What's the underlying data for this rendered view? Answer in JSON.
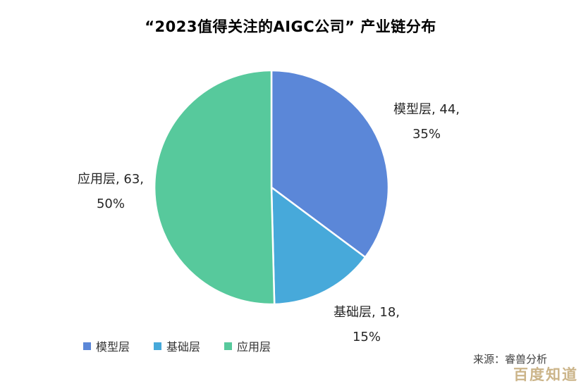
{
  "chart_data": {
    "type": "pie",
    "title": "“2023值得关注的AIGC公司” 产业链分布",
    "categories": [
      "模型层",
      "基础层",
      "应用层"
    ],
    "values": [
      44,
      18,
      63
    ],
    "percentages": [
      "35%",
      "15%",
      "50%"
    ],
    "colors": [
      "#5b87d8",
      "#47a9da",
      "#57c99c"
    ],
    "start_angle_deg": 0,
    "direction": "clockwise",
    "slice_border_color": "#ffffff",
    "legend_position": "bottom",
    "labels": [
      {
        "line1": "模型层, 44,",
        "line2": "35%"
      },
      {
        "line1": "基础层, 18,",
        "line2": "15%"
      },
      {
        "line1": "应用层, 63,",
        "line2": "50%"
      }
    ]
  },
  "legend": {
    "items": [
      {
        "label": "模型层",
        "color": "#5b87d8"
      },
      {
        "label": "基础层",
        "color": "#47a9da"
      },
      {
        "label": "应用层",
        "color": "#57c99c"
      }
    ]
  },
  "source": "来源：睿兽分析",
  "watermark": "百度知道"
}
